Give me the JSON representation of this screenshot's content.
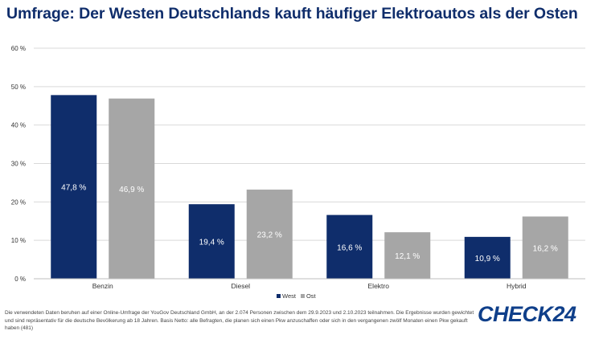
{
  "title": "Umfrage: Der Westen Deutschlands kauft häufiger Elektroautos als der Osten",
  "footnote": "Die verwendeten Daten beruhen auf einer Online-Umfrage der YouGov Deutschland GmbH, an der 2.074 Personen zwischen dem 29.9.2023 und 2.10.2023 teilnahmen. Die Ergebnisse wurden gewichtet und sind repräsentativ für die deutsche Bevölkerung ab 18 Jahren. Basis Netto: alle Befragten, die planen sich einen Pkw anzuschaffen oder sich in den vergangenen zwölf Monaten einen Pkw gekauft haben (481)",
  "logo": "CHECK24",
  "colors": {
    "west": "#0f2d6b",
    "ost": "#a6a6a6",
    "grid": "#d9d9d9",
    "title": "#0f2d6b"
  },
  "chart_data": {
    "type": "bar",
    "categories": [
      "Benzin",
      "Diesel",
      "Elektro",
      "Hybrid"
    ],
    "series": [
      {
        "name": "West",
        "values": [
          47.8,
          19.4,
          16.6,
          10.9
        ],
        "labels": [
          "47,8 %",
          "19,4 %",
          "16,6 %",
          "10,9 %"
        ]
      },
      {
        "name": "Ost",
        "values": [
          46.9,
          23.2,
          12.1,
          16.2
        ],
        "labels": [
          "46,9 %",
          "23,2 %",
          "12,1 %",
          "16,2 %"
        ]
      }
    ],
    "ylim": [
      0,
      60
    ],
    "yticks": [
      0,
      10,
      20,
      30,
      40,
      50,
      60
    ],
    "ytick_labels": [
      "0 %",
      "10 %",
      "20 %",
      "30 %",
      "40 %",
      "50 %",
      "60 %"
    ],
    "grid": true,
    "legend": "bottom-center"
  }
}
